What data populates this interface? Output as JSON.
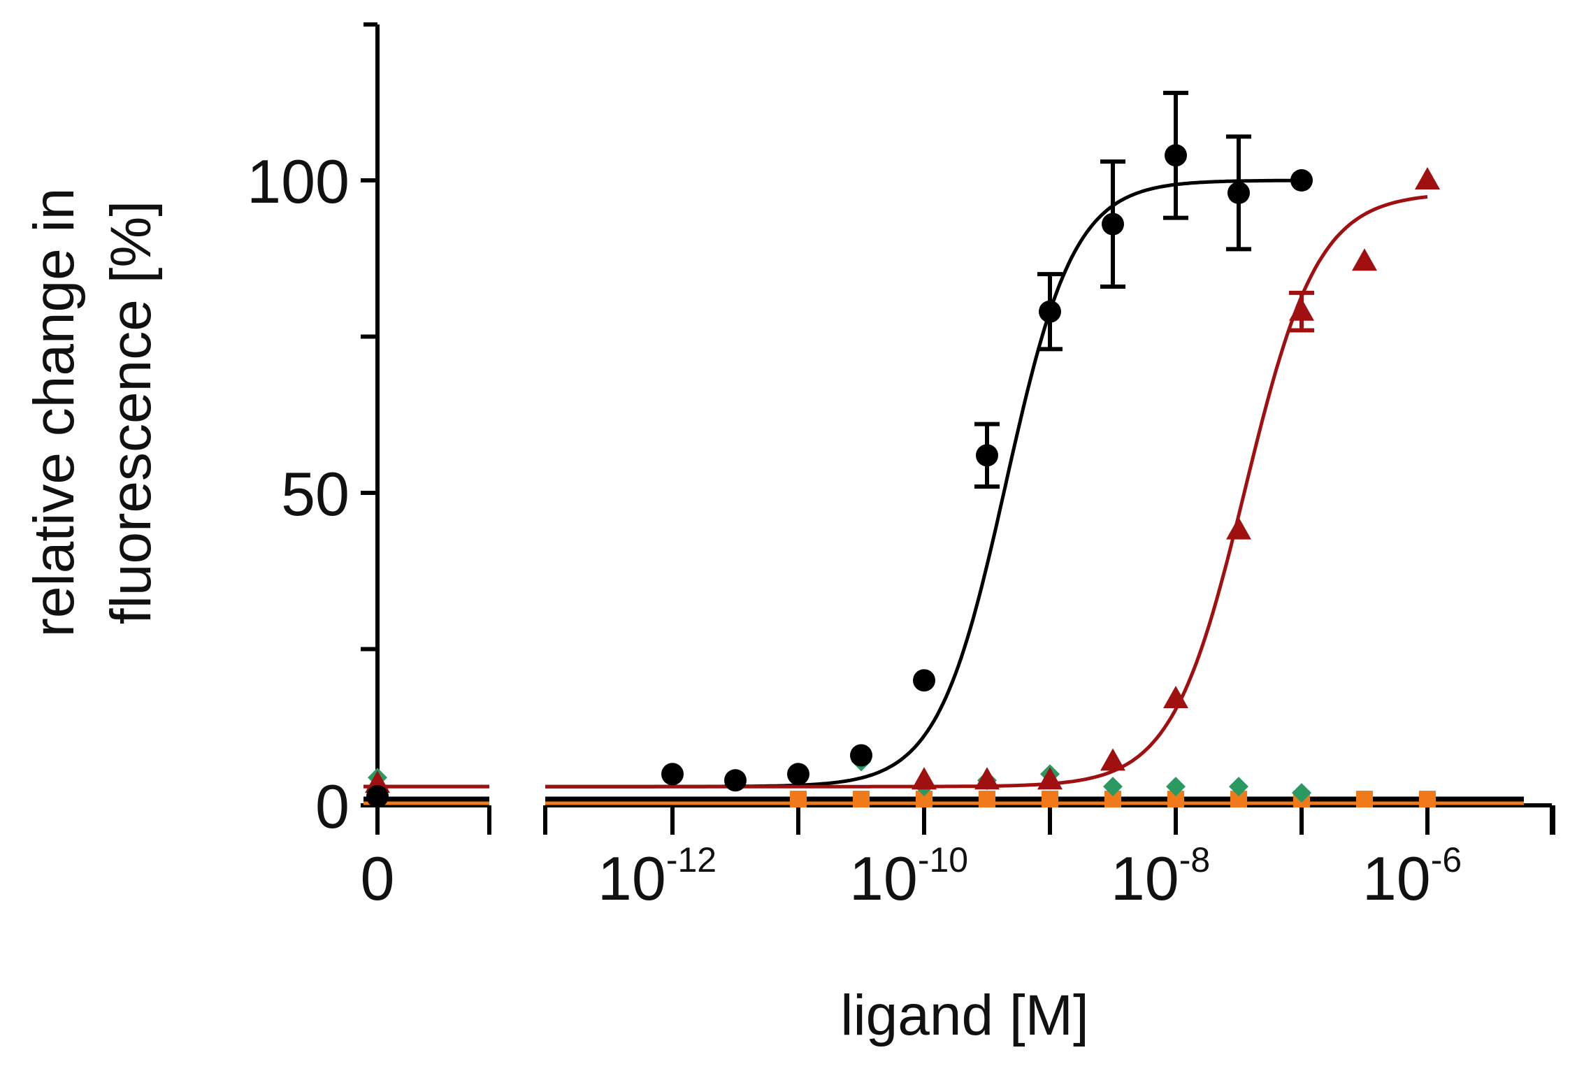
{
  "chart_data": {
    "type": "scatter",
    "xlabel": "ligand [M]",
    "ylabel": "relative change in fluorescence [%]",
    "ylabel_lines": [
      "relative change in",
      "fluorescence [%]"
    ],
    "xscale": "log",
    "xlim": [
      -13.0,
      -5.0
    ],
    "ylim": [
      0,
      120
    ],
    "zero_break": true,
    "x_ticks": [
      {
        "label": "0",
        "value": "zero"
      },
      {
        "base": "10",
        "exp": "-12",
        "value": -12
      },
      {
        "base": "10",
        "exp": "-10",
        "value": -10
      },
      {
        "base": "10",
        "exp": "-8",
        "value": -8
      },
      {
        "base": "10",
        "exp": "-6",
        "value": -6
      }
    ],
    "x_minor_ticks": [
      -11,
      -9,
      -7,
      -5
    ],
    "y_ticks": [
      {
        "label": "0",
        "value": 0
      },
      {
        "label": "",
        "value": 25
      },
      {
        "label": "50",
        "value": 50
      },
      {
        "label": "",
        "value": 75
      },
      {
        "label": "100",
        "value": 100
      }
    ],
    "series": [
      {
        "name": "black",
        "color": "#000000",
        "marker": "circle",
        "zero_value": 1,
        "points": [
          {
            "x": -12.0,
            "y": 5,
            "err": 0
          },
          {
            "x": -11.5,
            "y": 4,
            "err": 0
          },
          {
            "x": -11.0,
            "y": 5,
            "err": 0
          },
          {
            "x": -10.5,
            "y": 8,
            "err": 0
          },
          {
            "x": -10.0,
            "y": 20,
            "err": 0
          },
          {
            "x": -9.5,
            "y": 56,
            "err": 5
          },
          {
            "x": -9.0,
            "y": 79,
            "err": 6
          },
          {
            "x": -8.5,
            "y": 93,
            "err": 10
          },
          {
            "x": -8.0,
            "y": 104,
            "err": 10
          },
          {
            "x": -7.5,
            "y": 98,
            "err": 9
          },
          {
            "x": -7.0,
            "y": 100,
            "err": 0
          }
        ],
        "fit": {
          "bottom": 3,
          "top": 100,
          "logec50": -9.35,
          "hill": 1.6,
          "from": -12.7,
          "to": -7.0
        }
      },
      {
        "name": "red",
        "color": "#a01010",
        "marker": "triangle",
        "zero_value": 3,
        "points": [
          {
            "x": -10.0,
            "y": 4,
            "err": 0
          },
          {
            "x": -9.5,
            "y": 4,
            "err": 0
          },
          {
            "x": -9.0,
            "y": 4,
            "err": 0
          },
          {
            "x": -8.5,
            "y": 7,
            "err": 0
          },
          {
            "x": -8.0,
            "y": 17,
            "err": 0
          },
          {
            "x": -7.5,
            "y": 44,
            "err": 0
          },
          {
            "x": -7.0,
            "y": 79,
            "err": 3
          },
          {
            "x": -6.5,
            "y": 87,
            "err": 0
          },
          {
            "x": -6.0,
            "y": 100,
            "err": 0
          }
        ],
        "fit": {
          "bottom": 3,
          "top": 98,
          "logec50": -7.45,
          "hill": 1.5,
          "from": -12.7,
          "to": -6.0
        }
      },
      {
        "name": "green",
        "color": "#2a9a62",
        "marker": "diamond",
        "zero_value": 4,
        "points": [
          {
            "x": -12.0,
            "y": 5
          },
          {
            "x": -11.5,
            "y": 4
          },
          {
            "x": -11.0,
            "y": 5
          },
          {
            "x": -10.5,
            "y": 7
          },
          {
            "x": -10.0,
            "y": 3
          },
          {
            "x": -9.5,
            "y": 4
          },
          {
            "x": -9.0,
            "y": 5
          },
          {
            "x": -8.5,
            "y": 3
          },
          {
            "x": -8.0,
            "y": 3
          },
          {
            "x": -7.5,
            "y": 3
          },
          {
            "x": -7.0,
            "y": 2
          }
        ]
      },
      {
        "name": "orange",
        "color": "#f07a1a",
        "marker": "square",
        "zero_value": 1,
        "points": [
          {
            "x": -11.0,
            "y": 1
          },
          {
            "x": -10.5,
            "y": 1
          },
          {
            "x": -10.0,
            "y": 1
          },
          {
            "x": -9.5,
            "y": 1
          },
          {
            "x": -9.0,
            "y": 1
          },
          {
            "x": -8.5,
            "y": 1
          },
          {
            "x": -8.0,
            "y": 1
          },
          {
            "x": -7.5,
            "y": 1
          },
          {
            "x": -7.0,
            "y": 1
          },
          {
            "x": -6.5,
            "y": 1
          },
          {
            "x": -6.0,
            "y": 1
          }
        ]
      }
    ],
    "baselines": [
      {
        "name": "orange-baseline",
        "color": "#f07a1a",
        "value": 0
      },
      {
        "name": "black-baseline",
        "color": "#000000",
        "value": 1
      }
    ]
  }
}
